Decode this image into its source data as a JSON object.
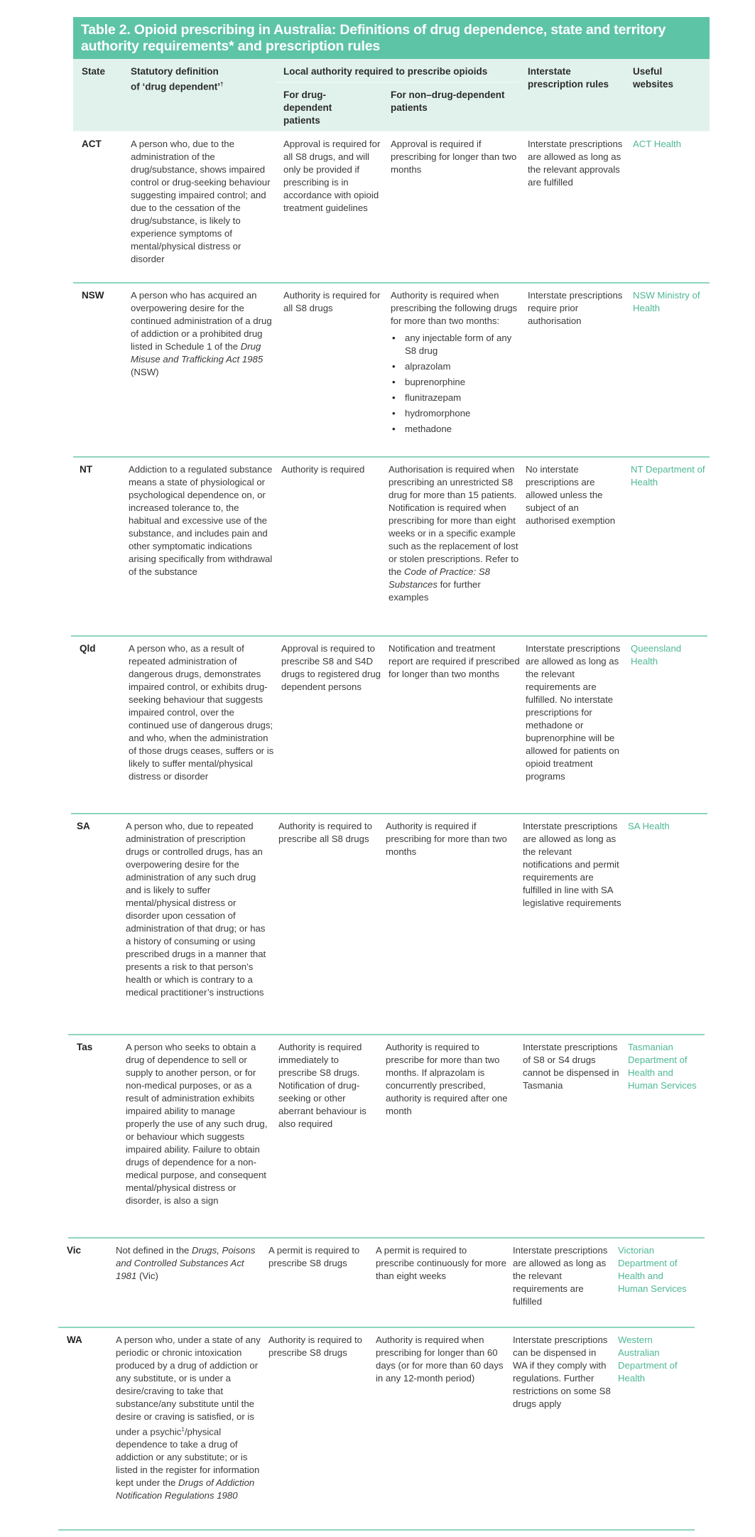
{
  "title": "Table 2. Opioid prescribing in Australia: Definitions of drug dependence, state and territory authority requirements* and prescription rules",
  "headers": {
    "state": "State",
    "definition": "Statutory definition of ‘drug dependent’",
    "definition_mark": "†",
    "local_authority": "Local authority required to prescribe opioids",
    "drug_dependent": "For drug-dependent patients",
    "non_drug_dependent": "For non–drug-dependent patients",
    "interstate": "Interstate prescription rules",
    "websites": "Useful websites"
  },
  "colors": {
    "title_bg": "#5ec4a6",
    "header_bg": "#e1f2ec",
    "rule": "#8fd5bd",
    "link": "#4fb892"
  },
  "rows": [
    {
      "state": "ACT",
      "definition": [
        {
          "text": "A person who, due to the administration of the drug/substance, shows impaired control or drug-seeking behaviour suggesting impaired control; and due to the cessation of the drug/substance, is likely to experience symptoms of mental/physical distress or disorder"
        }
      ],
      "drug_dependent": [
        {
          "text": "Approval is required for all S8 drugs, and will only be provided if prescribing is in accordance with opioid treatment guidelines"
        }
      ],
      "non_drug_dependent": [
        {
          "text": "Approval is required if prescribing for longer than two months"
        }
      ],
      "interstate": "Interstate prescriptions are allowed as long as the relevant approvals are fulfilled",
      "website": "ACT Health"
    },
    {
      "state": "NSW",
      "definition": [
        {
          "text": "A person who has acquired an overpowering desire for the continued administration of a drug of addiction or a prohibited drug listed in Schedule 1 of the "
        },
        {
          "text": "Drug Misuse and Trafficking Act 1985",
          "italic": true
        },
        {
          "text": " (NSW)"
        }
      ],
      "drug_dependent": [
        {
          "text": "Authority is required for all S8 drugs"
        }
      ],
      "non_drug_dependent": [
        {
          "text": "Authority is required when prescribing the following drugs for more than two months:"
        }
      ],
      "non_drug_dependent_list": [
        "any injectable form of any S8 drug",
        "alprazolam",
        "buprenorphine",
        "flunitrazepam",
        "hydromorphone",
        "methadone"
      ],
      "interstate": "Interstate prescriptions require prior authorisation",
      "website": "NSW Ministry of Health"
    },
    {
      "state": "NT",
      "definition": [
        {
          "text": "Addiction to a regulated substance means a state of physiological or psychological dependence on, or increased tolerance to, the habitual and excessive use of the substance, and includes pain and other symptomatic indications arising specifically from withdrawal of the substance"
        }
      ],
      "drug_dependent": [
        {
          "text": "Authority is required"
        }
      ],
      "non_drug_dependent": [
        {
          "text": "Authorisation is required when prescribing an unrestricted S8 drug for more than 15 patients. Notification is required when prescribing for more than eight weeks or in a specific example such as the replacement of lost or stolen prescriptions. Refer to the "
        },
        {
          "text": "Code of Practice: S8 Substances",
          "italic": true
        },
        {
          "text": " for further examples"
        }
      ],
      "interstate": "No interstate prescriptions are allowed unless the subject of an authorised exemption",
      "website": "NT Department of Health"
    },
    {
      "state": "Qld",
      "definition": [
        {
          "text": "A person who, as a result of repeated administration of dangerous drugs, demonstrates impaired control, or exhibits drug-seeking behaviour that suggests impaired control, over the continued use of dangerous drugs; and who, when the administration of those drugs ceases, suffers or is likely to suffer mental/physical distress or disorder"
        }
      ],
      "drug_dependent": [
        {
          "text": "Approval is required to prescribe S8 and S4D drugs to registered drug dependent persons"
        }
      ],
      "non_drug_dependent": [
        {
          "text": "Notification and treatment report are required if prescribed for longer than two months"
        }
      ],
      "interstate": "Interstate prescriptions are allowed as long as the relevant requirements are fulfilled. No interstate prescriptions for methadone or buprenorphine will be allowed for patients on opioid treatment programs",
      "website": "Queensland Health"
    },
    {
      "state": "SA",
      "definition": [
        {
          "text": "A person who, due to repeated administration of prescription drugs or controlled drugs, has an overpowering desire for the administration of any such drug and is likely to suffer mental/physical distress or disorder upon cessation of administration of that drug; or has a history of consuming or using prescribed drugs in a manner that presents a risk to that person’s health or which is contrary to a medical practitioner’s instructions"
        }
      ],
      "drug_dependent": [
        {
          "text": "Authority is required to prescribe all S8 drugs"
        }
      ],
      "non_drug_dependent": [
        {
          "text": "Authority is required if prescribing for more than two months"
        }
      ],
      "interstate": "Interstate prescriptions are allowed as long as the relevant notifications and permit requirements are fulfilled in line with SA legislative requirements",
      "website": "SA Health"
    },
    {
      "state": "Tas",
      "definition": [
        {
          "text": "A person who seeks to obtain a drug of dependence to sell or supply to another person, or for non-medical purposes, or as a result of administration exhibits impaired ability to manage properly the use of any such drug, or behaviour which suggests impaired ability. Failure to obtain drugs of dependence for a non-medical purpose, and consequent mental/physical distress or disorder, is also a sign"
        }
      ],
      "drug_dependent": [
        {
          "text": "Authority is required immediately to prescribe S8 drugs. Notification of drug-seeking or other aberrant behaviour is also required"
        }
      ],
      "non_drug_dependent": [
        {
          "text": "Authority is required to prescribe for more than two months. If alprazolam is concurrently prescribed, authority is required after one month"
        }
      ],
      "interstate": "Interstate prescriptions of S8 or S4 drugs cannot be dispensed in Tasmania",
      "website": "Tasmanian Department of Health and Human Services"
    },
    {
      "state": "Vic",
      "definition": [
        {
          "text": "Not defined in the "
        },
        {
          "text": "Drugs, Poisons and Controlled Substances Act 1981",
          "italic": true
        },
        {
          "text": " (Vic)"
        }
      ],
      "drug_dependent": [
        {
          "text": "A permit is required to prescribe S8 drugs"
        }
      ],
      "non_drug_dependent": [
        {
          "text": "A permit is required to prescribe continuously for more than eight weeks"
        }
      ],
      "interstate": "Interstate prescriptions are allowed as long as the relevant requirements are fulfilled",
      "website": "Victorian Department of Health and Human Services"
    },
    {
      "state": "WA",
      "definition": [
        {
          "text": "A person who, under a state of any periodic or chronic intoxication produced by a drug of addiction or any substitute, or is under a desire/craving to take that substance/any substitute until the desire or craving is satisfied, or is under a psychic"
        },
        {
          "text": "‡",
          "sup": true
        },
        {
          "text": "/physical dependence to take a drug of addiction or any substitute; or is listed in the register for information kept under the "
        },
        {
          "text": "Drugs of Addiction Notification Regulations 1980",
          "italic": true
        }
      ],
      "drug_dependent": [
        {
          "text": "Authority is required to prescribe S8 drugs"
        }
      ],
      "non_drug_dependent": [
        {
          "text": "Authority is required when prescribing for longer than 60 days (or for more than 60 days in any 12-month period)"
        }
      ],
      "interstate": "Interstate prescriptions can be dispensed in WA if they comply with regulations. Further restrictions on some S8 drugs apply",
      "website": "Western Australian Department of Health"
    }
  ]
}
